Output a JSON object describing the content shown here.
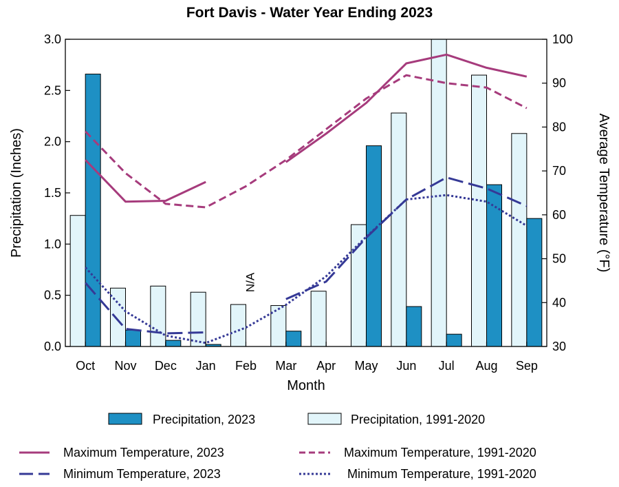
{
  "chart_data": {
    "type": "bar",
    "title": "Fort Davis - Water Year Ending 2023",
    "xlabel": "Month",
    "ylabel": "Precipitation (Inches)",
    "y2label": "Average Temperature (°F)",
    "categories": [
      "Oct",
      "Nov",
      "Dec",
      "Jan",
      "Feb",
      "Mar",
      "Apr",
      "May",
      "Jun",
      "Jul",
      "Aug",
      "Sep"
    ],
    "ylim": [
      0,
      3.0
    ],
    "y2lim": [
      30,
      100
    ],
    "yticks": [
      "0.0",
      "0.5",
      "1.0",
      "1.5",
      "2.0",
      "2.5",
      "3.0"
    ],
    "y2ticks": [
      "30",
      "40",
      "50",
      "60",
      "70",
      "80",
      "90",
      "100"
    ],
    "grid": false,
    "legend_position": "bottom",
    "bar_series": [
      {
        "name": "Precipitation, 1991-2020",
        "color": "#e2f5fa",
        "values": [
          1.28,
          0.57,
          0.59,
          0.53,
          0.41,
          0.4,
          0.54,
          1.19,
          2.28,
          3.0,
          2.65,
          2.08
        ]
      },
      {
        "name": "Precipitation, 2023",
        "color": "#1e90c4",
        "values": [
          2.66,
          0.16,
          0.06,
          0.02,
          null,
          0.15,
          null,
          1.96,
          0.39,
          0.12,
          1.58,
          1.25
        ]
      }
    ],
    "line_series": [
      {
        "name": "Maximum Temperature, 2023",
        "color": "#a63b7c",
        "style": "solid",
        "values": [
          72.5,
          63.0,
          63.2,
          67.5,
          null,
          null,
          null,
          null,
          null,
          null,
          null,
          null
        ]
      },
      {
        "name": "Maximum Temperature, 1991-2020",
        "color": "#a63b7c",
        "style": "dashed",
        "values": [
          79.0,
          69.5,
          62.5,
          61.7,
          66.5,
          72.5,
          79.5,
          86.5,
          91.8,
          90.0,
          89.0,
          84.3
        ]
      },
      {
        "name": "Maximum Temperature, 2023",
        "color": "#a63b7c",
        "style": "solid",
        "values": [
          null,
          null,
          null,
          null,
          null,
          72.0,
          78.5,
          85.5,
          94.5,
          96.5,
          93.5,
          91.5
        ]
      },
      {
        "name": "Minimum Temperature, 2023",
        "color": "#353996",
        "style": "longdash",
        "values": [
          44.5,
          34.0,
          33.0,
          33.2,
          null,
          40.8,
          44.8,
          54.8,
          63.5,
          68.5,
          66.0,
          62.0
        ]
      },
      {
        "name": "Minimum Temperature, 1991-2020",
        "color": "#353996",
        "style": "dotted",
        "values": [
          48.0,
          38.0,
          32.5,
          30.8,
          34.3,
          39.5,
          46.0,
          55.0,
          63.5,
          64.5,
          63.0,
          57.5
        ]
      }
    ],
    "annotations": [
      {
        "text": "N/A",
        "month": "Feb"
      }
    ]
  },
  "legend": {
    "precip_2023": "Precipitation, 2023",
    "precip_normal": "Precipitation, 1991-2020",
    "max_2023": "Maximum Temperature, 2023",
    "max_normal": "Maximum Temperature, 1991-2020",
    "min_2023": "Minimum Temperature, 2023",
    "min_normal": "Minimum Temperature, 1991-2020"
  }
}
